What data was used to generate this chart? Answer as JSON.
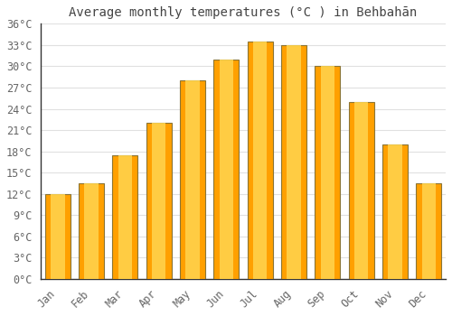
{
  "title": "Average monthly temperatures (°C ) in Behbahān",
  "months": [
    "Jan",
    "Feb",
    "Mar",
    "Apr",
    "May",
    "Jun",
    "Jul",
    "Aug",
    "Sep",
    "Oct",
    "Nov",
    "Dec"
  ],
  "values": [
    12.0,
    13.5,
    17.5,
    22.0,
    28.0,
    31.0,
    33.5,
    33.0,
    30.0,
    25.0,
    19.0,
    13.5
  ],
  "bar_color_center": "#FFD54F",
  "bar_color_edge": "#FFA000",
  "bar_border_color": "#8B7536",
  "background_color": "#FFFFFF",
  "grid_color": "#E0E0E0",
  "ylim": [
    0,
    36
  ],
  "yticks": [
    0,
    3,
    6,
    9,
    12,
    15,
    18,
    21,
    24,
    27,
    30,
    33,
    36
  ],
  "title_fontsize": 10,
  "tick_fontsize": 8.5,
  "bar_width": 0.75
}
